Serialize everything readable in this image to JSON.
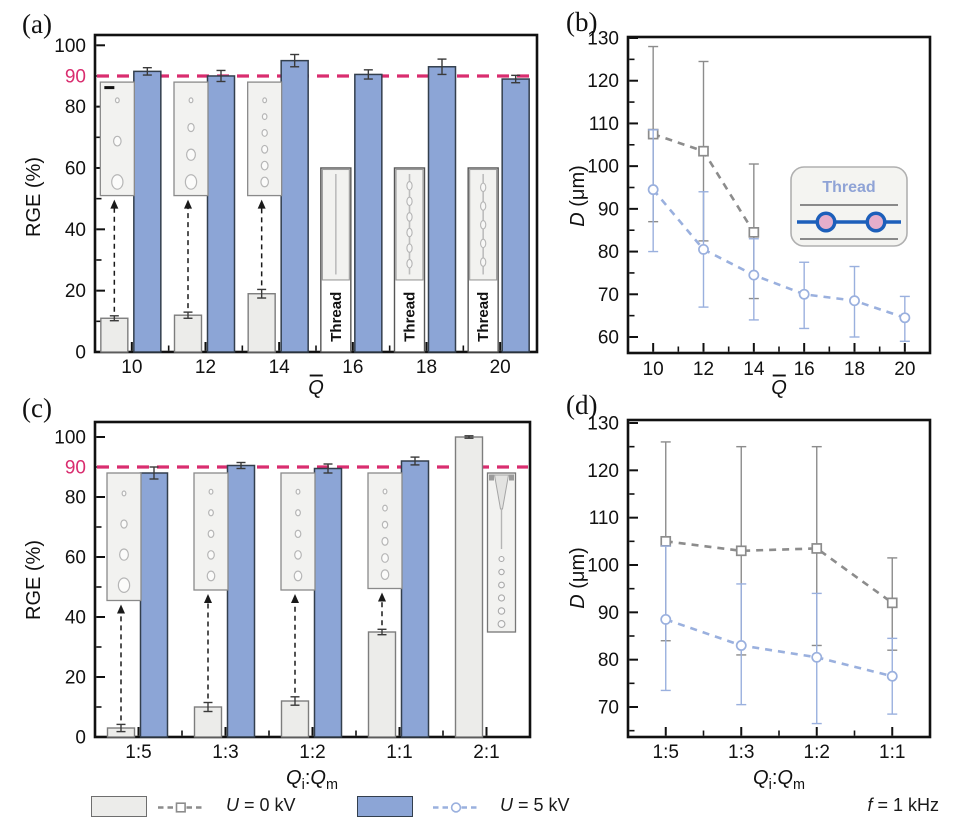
{
  "colors": {
    "bar_gray_fill": "#ececea",
    "bar_gray_stroke": "#7d7d7d",
    "bar_blue_fill": "#8ca5d6",
    "bar_blue_stroke": "#333f4d",
    "bar_error": "#3a3a3a",
    "series_gray": "#8c8c8c",
    "series_blue": "#9ab0de",
    "ref_magenta": "#d92d6f",
    "axis": "#111111",
    "inset_bg": "#f2f2f0",
    "inset_border": "#8a8a8a",
    "thread_text": "#8fa3d6",
    "schematic_blue": "#1d5fba",
    "schematic_wall": "#8a8a8a",
    "droplet_pink": "#e5aecb"
  },
  "legend": {
    "items": [
      {
        "var": "U",
        "rest": " = 0 kV",
        "swatch": "gray",
        "marker": "square"
      },
      {
        "var": "U",
        "rest": " = 5 kV",
        "swatch": "blue",
        "marker": "circle"
      }
    ],
    "note": {
      "var": "f",
      "rest": " = 1 kHz"
    }
  },
  "chart_data": [
    {
      "id": "a",
      "type": "bar",
      "panel_label": "(a)",
      "ylabel_text": "RGE (%)",
      "xlabel_text": "Q̄",
      "ylabel_segments": [
        {
          "t": "RGE (%)"
        }
      ],
      "xlabel_segments": [
        {
          "t": "Q",
          "i": 1,
          "bar": 1
        }
      ],
      "ylim": [
        0,
        105
      ],
      "yticks": [
        0,
        20,
        40,
        60,
        80,
        100
      ],
      "minor": 10,
      "grid": false,
      "ref_line": {
        "value": 90,
        "label": "90"
      },
      "categories": [
        "10",
        "12",
        "14",
        "16",
        "18",
        "20"
      ],
      "series": [
        {
          "name": "U = 0 kV",
          "color_key": "gray",
          "values": [
            11,
            12,
            19,
            null,
            null,
            null
          ],
          "err": [
            0.8,
            1,
            1.4,
            null,
            null,
            null
          ],
          "thread": [
            false,
            false,
            false,
            true,
            true,
            true
          ],
          "thread_top": 60,
          "thread_label": "Thread",
          "thread_beads": [
            null,
            null,
            null,
            0,
            6,
            5
          ]
        },
        {
          "name": "U = 5 kV",
          "color_key": "blue",
          "values": [
            91.5,
            90,
            95,
            90.5,
            93,
            89
          ],
          "err": [
            1.2,
            1.8,
            2,
            1.5,
            2.5,
            1.2
          ]
        }
      ],
      "insets": [
        {
          "cat": 0,
          "span": [
            51,
            88
          ],
          "droplets": 3,
          "scalebar": true,
          "arrow": true
        },
        {
          "cat": 1,
          "span": [
            51,
            88
          ],
          "droplets": 4,
          "arrow": true
        },
        {
          "cat": 2,
          "span": [
            51,
            88
          ],
          "droplets": 6,
          "arrow": true
        }
      ]
    },
    {
      "id": "b",
      "type": "line",
      "panel_label": "(b)",
      "ylabel_text": "D (μm)",
      "xlabel_text": "Q̄",
      "ylabel_segments": [
        {
          "t": "D",
          "i": 1
        },
        {
          "t": " (μm)"
        }
      ],
      "xlabel_segments": [
        {
          "t": "Q",
          "i": 1,
          "bar": 1
        }
      ],
      "yticks": [
        60,
        70,
        80,
        90,
        100,
        110,
        120,
        130
      ],
      "minor": 5,
      "grid": false,
      "legend_position": "none",
      "x": [
        "10",
        "12",
        "14",
        "16",
        "18",
        "20"
      ],
      "series": [
        {
          "name": "U = 0 kV",
          "marker": "square",
          "color_key": "gray",
          "y": [
            107.5,
            103.5,
            84.5,
            null,
            null,
            null
          ],
          "lo": [
            87,
            82.5,
            69,
            null,
            null,
            null
          ],
          "hi": [
            128,
            124.5,
            100.5,
            null,
            null,
            null
          ]
        },
        {
          "name": "U = 5 kV",
          "marker": "circle",
          "color_key": "blue",
          "y": [
            94.5,
            80.5,
            74.5,
            70,
            68.5,
            64.5
          ],
          "lo": [
            80,
            67,
            64,
            62,
            60,
            59
          ],
          "hi": [
            108.5,
            94,
            83,
            77.5,
            76.5,
            69.5
          ]
        }
      ],
      "inset": {
        "label": "Thread"
      }
    },
    {
      "id": "c",
      "type": "bar",
      "panel_label": "(c)",
      "ylabel_text": "RGE (%)",
      "xlabel_text": "Qi:Qm",
      "ylabel_segments": [
        {
          "t": "RGE (%)"
        }
      ],
      "xlabel_segments": [
        {
          "t": "Q",
          "i": 1
        },
        {
          "t": "i",
          "sub": 1
        },
        {
          "t": ":"
        },
        {
          "t": "Q",
          "i": 1
        },
        {
          "t": "m",
          "sub": 1
        }
      ],
      "ylim": [
        0,
        105
      ],
      "yticks": [
        0,
        20,
        40,
        60,
        80,
        100
      ],
      "minor": 10,
      "grid": false,
      "ref_line": {
        "value": 90,
        "label": "90"
      },
      "categories": [
        "1:5",
        "1:3",
        "1:2",
        "1:1",
        "2:1"
      ],
      "series": [
        {
          "name": "U = 0 kV",
          "color_key": "gray",
          "values": [
            3,
            10,
            12,
            35,
            100
          ],
          "err": [
            1.2,
            1.5,
            1.4,
            0.9,
            0.4
          ]
        },
        {
          "name": "U = 5 kV",
          "color_key": "blue",
          "values": [
            88,
            90.5,
            89.5,
            92,
            null
          ],
          "err": [
            2,
            1,
            1.5,
            1.3,
            null
          ]
        }
      ],
      "insets": [
        {
          "cat": 0,
          "span": [
            45.5,
            88
          ],
          "droplets": 4,
          "arrow": true
        },
        {
          "cat": 1,
          "span": [
            49,
            88
          ],
          "droplets": 5,
          "arrow": true
        },
        {
          "cat": 2,
          "span": [
            49,
            88
          ],
          "droplets": 5,
          "arrow": true
        },
        {
          "cat": 3,
          "span": [
            49.5,
            88
          ],
          "droplets": 6,
          "arrow": true
        },
        {
          "cat": 4,
          "span": [
            35,
            88
          ],
          "side": true
        }
      ]
    },
    {
      "id": "d",
      "type": "line",
      "panel_label": "(d)",
      "ylabel_text": "D (μm)",
      "xlabel_text": "Qi:Qm",
      "ylabel_segments": [
        {
          "t": "D",
          "i": 1
        },
        {
          "t": " (μm)"
        }
      ],
      "xlabel_segments": [
        {
          "t": "Q",
          "i": 1
        },
        {
          "t": "i",
          "sub": 1
        },
        {
          "t": ":"
        },
        {
          "t": "Q",
          "i": 1
        },
        {
          "t": "m",
          "sub": 1
        }
      ],
      "yticks": [
        70,
        80,
        90,
        100,
        110,
        120,
        130
      ],
      "minor": 5,
      "grid": false,
      "x": [
        "1:5",
        "1:3",
        "1:2",
        "1:1"
      ],
      "series": [
        {
          "name": "U = 0 kV",
          "marker": "square",
          "color_key": "gray",
          "y": [
            105,
            103,
            103.5,
            92
          ],
          "lo": [
            84,
            81,
            83,
            82
          ],
          "hi": [
            126,
            125,
            125,
            101.5
          ]
        },
        {
          "name": "U = 5 kV",
          "marker": "circle",
          "color_key": "blue",
          "y": [
            88.5,
            83,
            80.5,
            76.5
          ],
          "lo": [
            73.5,
            70.5,
            66.5,
            68.5
          ],
          "hi": [
            104,
            96,
            94,
            84.5
          ]
        }
      ]
    }
  ]
}
